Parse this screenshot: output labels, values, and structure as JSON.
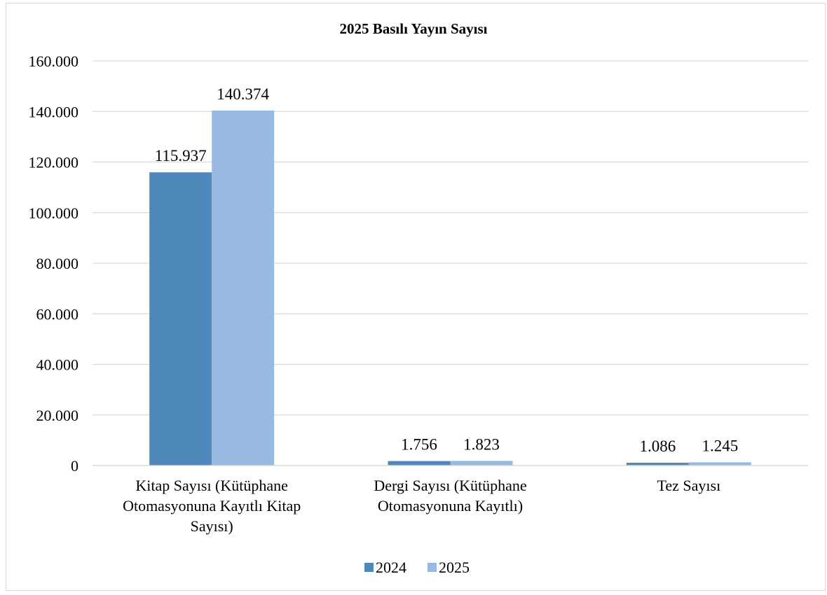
{
  "chart_data": {
    "type": "bar",
    "title": "2025 Basılı Yayın Sayısı",
    "xlabel": "",
    "ylabel": "",
    "categories": [
      [
        "Kitap Sayısı (Kütüphane",
        "Otomasyonuna Kayıtlı Kitap",
        "Sayısı)"
      ],
      [
        "Dergi Sayısı (Kütüphane",
        "Otomasyonuna Kayıtlı)"
      ],
      [
        "Tez Sayısı"
      ]
    ],
    "series": [
      {
        "name": "2024",
        "color": "#4f88bb",
        "values": [
          115937,
          1756,
          1086
        ],
        "labels": [
          "115.937",
          "1.756",
          "1.086"
        ]
      },
      {
        "name": "2025",
        "color": "#98b9e0",
        "values": [
          140374,
          1823,
          1245
        ],
        "labels": [
          "140.374",
          "1.823",
          "1.245"
        ]
      }
    ],
    "ylim": [
      0,
      160000
    ],
    "yticks": [
      0,
      20000,
      40000,
      60000,
      80000,
      100000,
      120000,
      140000,
      160000
    ],
    "ytick_labels": [
      "0",
      "20.000",
      "40.000",
      "60.000",
      "80.000",
      "100.000",
      "120.000",
      "140.000",
      "160.000"
    ],
    "grid": true,
    "gridColor": "#d9d9d9",
    "legend": "bottom"
  }
}
